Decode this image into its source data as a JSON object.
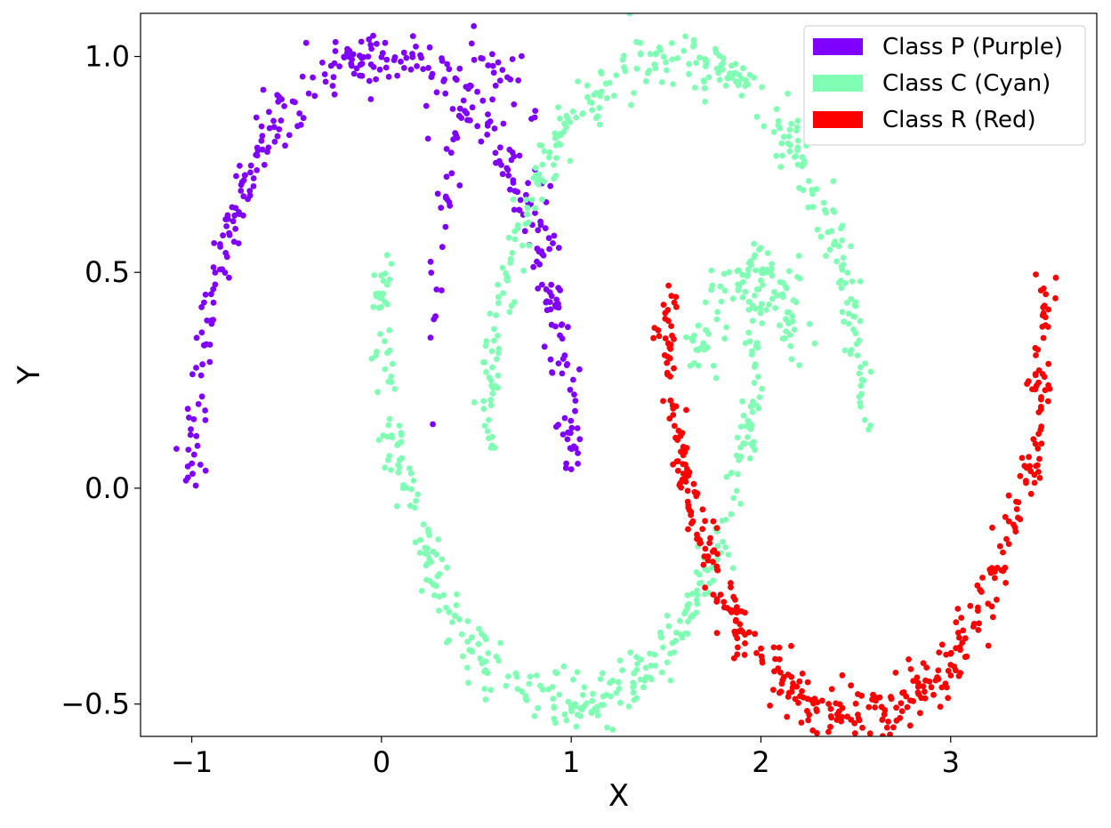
{
  "chart_data": {
    "type": "scatter",
    "xlabel": "X",
    "ylabel": "Y",
    "xlim": [
      -1.27,
      3.77
    ],
    "ylim": [
      -0.575,
      1.1
    ],
    "x_ticks": [
      -1,
      0,
      1,
      2,
      3
    ],
    "x_tick_labels": [
      "−1",
      "0",
      "1",
      "2",
      "3"
    ],
    "y_ticks": [
      -0.5,
      0.0,
      0.5,
      1.0
    ],
    "y_tick_labels": [
      "−0.5",
      "0.0",
      "0.5",
      "1.0"
    ],
    "grid": false,
    "legend_position": "top-right",
    "series": [
      {
        "name": "Class P (Purple)",
        "color": "#8000ff",
        "shape": "two narrow arches (upper moon)",
        "x": [
          -1.0,
          -0.9,
          -0.7,
          -0.5,
          -0.3,
          -0.1,
          0.0,
          0.2,
          0.4,
          0.6,
          0.8,
          0.9,
          0.95,
          0.2,
          0.3,
          0.5,
          0.7,
          0.9
        ],
        "y": [
          0.05,
          0.45,
          0.75,
          0.9,
          0.98,
          1.02,
          1.0,
          0.97,
          0.9,
          0.8,
          0.62,
          0.35,
          0.1,
          1.0,
          0.98,
          0.92,
          0.8,
          0.5
        ]
      },
      {
        "name": "Class C (Cyan)",
        "color": "#80ffb4",
        "shape": "crescents (middle moons)",
        "x": [
          0.0,
          0.2,
          0.4,
          0.6,
          0.8,
          1.0,
          1.2,
          1.4,
          1.6,
          1.8,
          0.5,
          0.7,
          0.9,
          1.1,
          1.3,
          1.5,
          1.7,
          1.9,
          2.1,
          2.3,
          2.5
        ],
        "y": [
          0.3,
          -0.05,
          -0.3,
          -0.42,
          -0.48,
          -0.5,
          -0.48,
          -0.42,
          -0.33,
          -0.2,
          0.3,
          0.7,
          0.88,
          0.96,
          1.0,
          1.0,
          0.95,
          0.85,
          0.7,
          0.5,
          0.2
        ]
      },
      {
        "name": "Class R (Red)",
        "color": "#ff0000",
        "shape": "lower moon",
        "x": [
          1.5,
          1.6,
          1.7,
          1.9,
          2.1,
          2.3,
          2.5,
          2.7,
          2.9,
          3.1,
          3.3,
          3.5
        ],
        "y": [
          0.4,
          0.1,
          -0.1,
          -0.3,
          -0.42,
          -0.5,
          -0.52,
          -0.48,
          -0.4,
          -0.25,
          0.0,
          0.35
        ]
      }
    ]
  }
}
